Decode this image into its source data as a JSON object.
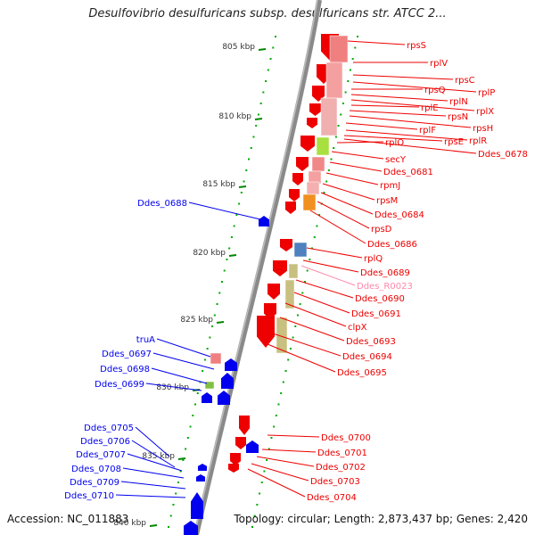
{
  "header": {
    "title": "Desulfovibrio desulfuricans subsp. desulfuricans str. ATCC 2..."
  },
  "footer": {
    "accession": "Accession: NC_011883",
    "summary": "Topology: circular; Length: 2,873,437 bp; Genes: 2,420"
  },
  "colors": {
    "backbone": "#888888",
    "tick": "#00aa00",
    "left_strand": "#0000ee",
    "right_strand": "#ee0000",
    "rrna_label": "#ff88aa"
  },
  "ticks": [
    {
      "label": "805 kbp",
      "kbp": 805
    },
    {
      "label": "810 kbp",
      "kbp": 810
    },
    {
      "label": "815 kbp",
      "kbp": 815
    },
    {
      "label": "820 kbp",
      "kbp": 820
    },
    {
      "label": "825 kbp",
      "kbp": 825
    },
    {
      "label": "830 kbp",
      "kbp": 830
    },
    {
      "label": "835 kbp",
      "kbp": 835
    },
    {
      "label": "840 kbp",
      "kbp": 840
    }
  ],
  "genes_right": [
    {
      "label": "rpsS",
      "color": "red"
    },
    {
      "label": "rplV",
      "color": "red"
    },
    {
      "label": "rpsC",
      "color": "red"
    },
    {
      "label": "rplP",
      "color": "red"
    },
    {
      "label": "rpsQ",
      "color": "red"
    },
    {
      "label": "rplN",
      "color": "red"
    },
    {
      "label": "rplX",
      "color": "red"
    },
    {
      "label": "rplE",
      "color": "red"
    },
    {
      "label": "rpsN",
      "color": "red"
    },
    {
      "label": "rpsH",
      "color": "red"
    },
    {
      "label": "rplF",
      "color": "red"
    },
    {
      "label": "rplR",
      "color": "red"
    },
    {
      "label": "rpsE",
      "color": "red"
    },
    {
      "label": "Ddes_0678",
      "color": "red"
    },
    {
      "label": "rplO",
      "color": "red"
    },
    {
      "label": "secY",
      "color": "red"
    },
    {
      "label": "Ddes_0681",
      "color": "red"
    },
    {
      "label": "rpmJ",
      "color": "red"
    },
    {
      "label": "rpsM",
      "color": "red"
    },
    {
      "label": "Ddes_0684",
      "color": "red"
    },
    {
      "label": "rpsD",
      "color": "red"
    },
    {
      "label": "Ddes_0686",
      "color": "red"
    },
    {
      "label": "rplQ",
      "color": "red"
    },
    {
      "label": "Ddes_0689",
      "color": "red"
    },
    {
      "label": "Ddes_R0023",
      "color": "pink"
    },
    {
      "label": "Ddes_0690",
      "color": "red"
    },
    {
      "label": "Ddes_0691",
      "color": "red"
    },
    {
      "label": "clpX",
      "color": "red"
    },
    {
      "label": "Ddes_0693",
      "color": "red"
    },
    {
      "label": "Ddes_0694",
      "color": "red"
    },
    {
      "label": "Ddes_0695",
      "color": "red"
    },
    {
      "label": "Ddes_0700",
      "color": "red"
    },
    {
      "label": "Ddes_0701",
      "color": "red"
    },
    {
      "label": "Ddes_0702",
      "color": "red"
    },
    {
      "label": "Ddes_0703",
      "color": "red"
    },
    {
      "label": "Ddes_0704",
      "color": "red"
    }
  ],
  "genes_left": [
    {
      "label": "Ddes_0688",
      "color": "blue"
    },
    {
      "label": "truA",
      "color": "blue"
    },
    {
      "label": "Ddes_0697",
      "color": "blue"
    },
    {
      "label": "Ddes_0698",
      "color": "blue"
    },
    {
      "label": "Ddes_0699",
      "color": "blue"
    },
    {
      "label": "Ddes_0705",
      "color": "blue"
    },
    {
      "label": "Ddes_0706",
      "color": "blue"
    },
    {
      "label": "Ddes_0707",
      "color": "blue"
    },
    {
      "label": "Ddes_0708",
      "color": "blue"
    },
    {
      "label": "Ddes_0709",
      "color": "blue"
    },
    {
      "label": "Ddes_0710",
      "color": "blue"
    }
  ]
}
